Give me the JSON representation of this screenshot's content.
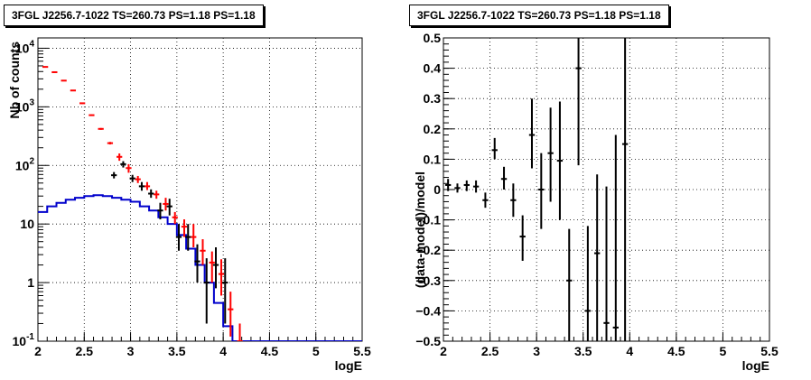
{
  "chart_data": [
    {
      "type": "histogram",
      "title": "3FGL J2256.7-1022 TS=260.73 PS=1.18 PS=1.18",
      "xlabel": "logE",
      "ylabel": "Nb of counts",
      "xlim": [
        2,
        5.5
      ],
      "ylim": [
        0.1,
        15000
      ],
      "yscale": "log",
      "grid": true,
      "xticks": [
        "2",
        "2.5",
        "3",
        "3.5",
        "4",
        "4.5",
        "5",
        "5.5"
      ],
      "yticks": [
        {
          "value": 0.1,
          "label": "10",
          "sup": "-1"
        },
        {
          "value": 1,
          "label": "1",
          "sup": ""
        },
        {
          "value": 10,
          "label": "10",
          "sup": ""
        },
        {
          "value": 100,
          "label": "10",
          "sup": "2"
        },
        {
          "value": 1000,
          "label": "10",
          "sup": "3"
        },
        {
          "value": 10000,
          "label": "10",
          "sup": "4"
        }
      ],
      "bin_width": 0.1,
      "series": [
        {
          "color": "#000000",
          "style": "errorbars",
          "points": [
            {
              "x": 2.85,
              "y": 68,
              "lo": 60,
              "hi": 77
            },
            {
              "x": 2.95,
              "y": 105,
              "lo": 92,
              "hi": 118
            },
            {
              "x": 3.05,
              "y": 60,
              "lo": 52,
              "hi": 69
            },
            {
              "x": 3.15,
              "y": 44,
              "lo": 37,
              "hi": 52
            },
            {
              "x": 3.25,
              "y": 33,
              "lo": 28,
              "hi": 39
            },
            {
              "x": 3.35,
              "y": 17,
              "lo": 12,
              "hi": 23
            },
            {
              "x": 3.45,
              "y": 20,
              "lo": 14,
              "hi": 27
            },
            {
              "x": 3.55,
              "y": 6,
              "lo": 3.5,
              "hi": 10
            },
            {
              "x": 3.65,
              "y": 6,
              "lo": 3.5,
              "hi": 10
            },
            {
              "x": 3.75,
              "y": 2.3,
              "lo": 1.0,
              "hi": 4.5
            },
            {
              "x": 3.85,
              "y": 1.0,
              "lo": 0.2,
              "hi": 2.6
            },
            {
              "x": 3.95,
              "y": 2.0,
              "lo": 0.8,
              "hi": 4.0
            },
            {
              "x": 4.05,
              "y": 1.0,
              "lo": 0.2,
              "hi": 2.6
            }
          ]
        },
        {
          "color": "#ff0000",
          "style": "errorbars",
          "points": [
            {
              "x": 2.05,
              "y": 4800,
              "lo": 4750,
              "hi": 4850
            },
            {
              "x": 2.15,
              "y": 3900,
              "lo": 3850,
              "hi": 3950
            },
            {
              "x": 2.25,
              "y": 2800,
              "lo": 2750,
              "hi": 2850
            },
            {
              "x": 2.35,
              "y": 1900,
              "lo": 1870,
              "hi": 1930
            },
            {
              "x": 2.45,
              "y": 1150,
              "lo": 1120,
              "hi": 1180
            },
            {
              "x": 2.55,
              "y": 720,
              "lo": 700,
              "hi": 740
            },
            {
              "x": 2.65,
              "y": 420,
              "lo": 405,
              "hi": 435
            },
            {
              "x": 2.75,
              "y": 240,
              "lo": 228,
              "hi": 252
            },
            {
              "x": 2.85,
              "y": 140,
              "lo": 120,
              "hi": 160
            },
            {
              "x": 2.95,
              "y": 90,
              "lo": 75,
              "hi": 105
            },
            {
              "x": 3.05,
              "y": 58,
              "lo": 50,
              "hi": 66
            },
            {
              "x": 3.15,
              "y": 44,
              "lo": 38,
              "hi": 52
            },
            {
              "x": 3.25,
              "y": 32,
              "lo": 27,
              "hi": 37
            },
            {
              "x": 3.35,
              "y": 22,
              "lo": 17,
              "hi": 28
            },
            {
              "x": 3.45,
              "y": 13,
              "lo": 10,
              "hi": 16
            },
            {
              "x": 3.55,
              "y": 9,
              "lo": 6,
              "hi": 12
            },
            {
              "x": 3.65,
              "y": 6,
              "lo": 4,
              "hi": 10
            },
            {
              "x": 3.75,
              "y": 3.5,
              "lo": 2.0,
              "hi": 5.5
            },
            {
              "x": 3.85,
              "y": 2.2,
              "lo": 1.0,
              "hi": 3.4
            },
            {
              "x": 3.95,
              "y": 1.4,
              "lo": 0.6,
              "hi": 2.5
            },
            {
              "x": 4.05,
              "y": 0.35,
              "lo": 0.12,
              "hi": 0.7
            },
            {
              "x": 4.15,
              "y": 0.1,
              "lo": 0.1,
              "hi": 0.2
            }
          ]
        },
        {
          "color": "#0000cc",
          "style": "step",
          "bins": [
            {
              "x0": 2.0,
              "x1": 2.1,
              "y": 16
            },
            {
              "x0": 2.1,
              "x1": 2.2,
              "y": 20
            },
            {
              "x0": 2.2,
              "x1": 2.3,
              "y": 23
            },
            {
              "x0": 2.3,
              "x1": 2.4,
              "y": 26
            },
            {
              "x0": 2.4,
              "x1": 2.5,
              "y": 28
            },
            {
              "x0": 2.5,
              "x1": 2.6,
              "y": 30
            },
            {
              "x0": 2.6,
              "x1": 2.7,
              "y": 31
            },
            {
              "x0": 2.7,
              "x1": 2.8,
              "y": 30
            },
            {
              "x0": 2.8,
              "x1": 2.9,
              "y": 28
            },
            {
              "x0": 2.9,
              "x1": 3.0,
              "y": 26
            },
            {
              "x0": 3.0,
              "x1": 3.1,
              "y": 24
            },
            {
              "x0": 3.1,
              "x1": 3.2,
              "y": 20
            },
            {
              "x0": 3.2,
              "x1": 3.3,
              "y": 17
            },
            {
              "x0": 3.3,
              "x1": 3.4,
              "y": 13
            },
            {
              "x0": 3.4,
              "x1": 3.5,
              "y": 10
            },
            {
              "x0": 3.5,
              "x1": 3.6,
              "y": 6.5
            },
            {
              "x0": 3.6,
              "x1": 3.7,
              "y": 3.8
            },
            {
              "x0": 3.7,
              "x1": 3.8,
              "y": 2.0
            },
            {
              "x0": 3.8,
              "x1": 3.9,
              "y": 1.0
            },
            {
              "x0": 3.9,
              "x1": 4.0,
              "y": 0.45
            },
            {
              "x0": 4.0,
              "x1": 4.1,
              "y": 0.18
            },
            {
              "x0": 4.1,
              "x1": 5.5,
              "y": 0.1
            }
          ]
        }
      ]
    },
    {
      "type": "errorbar",
      "title": "3FGL J2256.7-1022 TS=260.73 PS=1.18 PS=1.18",
      "xlabel": "logE",
      "ylabel": "(data-model)/model",
      "xlim": [
        2,
        5.5
      ],
      "ylim": [
        -0.5,
        0.5
      ],
      "grid": true,
      "xticks": [
        "2",
        "2.5",
        "3",
        "3.5",
        "4",
        "4.5",
        "5",
        "5.5"
      ],
      "yticks": [
        "-0.5",
        "-0.4",
        "-0.3",
        "-0.2",
        "-0.1",
        "0",
        "0.1",
        "0.2",
        "0.3",
        "0.4",
        "0.5"
      ],
      "bin_width": 0.1,
      "series": [
        {
          "color": "#000000",
          "points": [
            {
              "x": 2.05,
              "y": 0.015,
              "lo": -0.005,
              "hi": 0.035
            },
            {
              "x": 2.15,
              "y": 0.005,
              "lo": -0.01,
              "hi": 0.02
            },
            {
              "x": 2.25,
              "y": 0.015,
              "lo": -0.005,
              "hi": 0.03
            },
            {
              "x": 2.35,
              "y": 0.01,
              "lo": -0.01,
              "hi": 0.03
            },
            {
              "x": 2.45,
              "y": -0.035,
              "lo": -0.06,
              "hi": -0.01
            },
            {
              "x": 2.55,
              "y": 0.13,
              "lo": 0.1,
              "hi": 0.17
            },
            {
              "x": 2.65,
              "y": 0.035,
              "lo": 0.0,
              "hi": 0.075
            },
            {
              "x": 2.75,
              "y": -0.035,
              "lo": -0.09,
              "hi": 0.02
            },
            {
              "x": 2.85,
              "y": -0.155,
              "lo": -0.235,
              "hi": -0.085
            },
            {
              "x": 2.95,
              "y": 0.18,
              "lo": 0.07,
              "hi": 0.3
            },
            {
              "x": 3.05,
              "y": 0.0,
              "lo": -0.13,
              "hi": 0.12
            },
            {
              "x": 3.15,
              "y": 0.12,
              "lo": -0.04,
              "hi": 0.27
            },
            {
              "x": 3.25,
              "y": 0.095,
              "lo": -0.1,
              "hi": 0.29
            },
            {
              "x": 3.35,
              "y": -0.3,
              "lo": -0.5,
              "hi": -0.13
            },
            {
              "x": 3.45,
              "y": 0.4,
              "lo": 0.08,
              "hi": 0.5
            },
            {
              "x": 3.55,
              "y": -0.4,
              "lo": -0.5,
              "hi": -0.12
            },
            {
              "x": 3.65,
              "y": -0.21,
              "lo": -0.5,
              "hi": 0.05
            },
            {
              "x": 3.75,
              "y": -0.44,
              "lo": -0.5,
              "hi": 0.01
            },
            {
              "x": 3.85,
              "y": -0.455,
              "lo": -0.5,
              "hi": 0.18
            },
            {
              "x": 3.95,
              "y": 0.15,
              "lo": -0.5,
              "hi": 0.5
            }
          ]
        }
      ]
    }
  ]
}
